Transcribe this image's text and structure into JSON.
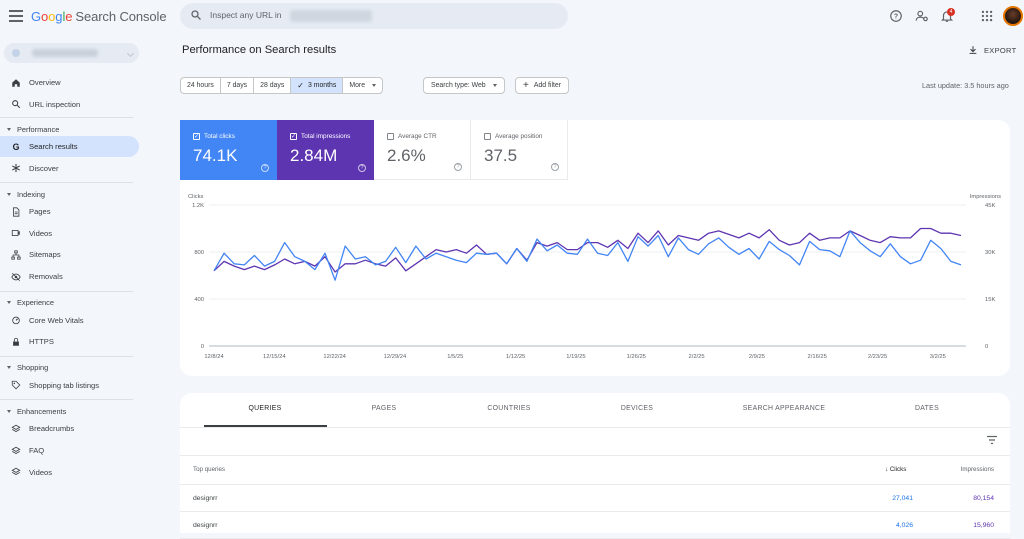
{
  "app": {
    "logo_letters": [
      {
        "ch": "G",
        "color": "#4285F4"
      },
      {
        "ch": "o",
        "color": "#EA4335"
      },
      {
        "ch": "o",
        "color": "#FBBC05"
      },
      {
        "ch": "g",
        "color": "#4285F4"
      },
      {
        "ch": "l",
        "color": "#34A853"
      },
      {
        "ch": "e",
        "color": "#EA4335"
      }
    ],
    "product": "Search Console",
    "search_placeholder": "Inspect any URL in",
    "notification_count": "4"
  },
  "sidebar": {
    "items": [
      {
        "label": "Overview",
        "icon": "home-icon"
      },
      {
        "label": "URL inspection",
        "icon": "search-icon"
      }
    ],
    "sections": [
      {
        "label": "Performance",
        "items": [
          {
            "label": "Search results",
            "icon": "google-g-icon",
            "active": true
          },
          {
            "label": "Discover",
            "icon": "asterisk-icon"
          }
        ]
      },
      {
        "label": "Indexing",
        "items": [
          {
            "label": "Pages",
            "icon": "pages-icon"
          },
          {
            "label": "Videos",
            "icon": "videos-icon"
          },
          {
            "label": "Sitemaps",
            "icon": "sitemaps-icon"
          },
          {
            "label": "Removals",
            "icon": "eye-off-icon"
          }
        ]
      },
      {
        "label": "Experience",
        "items": [
          {
            "label": "Core Web Vitals",
            "icon": "gauge-icon"
          },
          {
            "label": "HTTPS",
            "icon": "lock-icon"
          }
        ]
      },
      {
        "label": "Shopping",
        "items": [
          {
            "label": "Shopping tab listings",
            "icon": "tag-icon"
          }
        ]
      },
      {
        "label": "Enhancements",
        "items": [
          {
            "label": "Breadcrumbs",
            "icon": "layers-icon"
          },
          {
            "label": "FAQ",
            "icon": "layers-icon"
          },
          {
            "label": "Videos",
            "icon": "layers-icon"
          }
        ]
      }
    ]
  },
  "header": {
    "title": "Performance on Search results",
    "export_label": "EXPORT",
    "last_update": "Last update: 3.5 hours ago"
  },
  "filters": {
    "date_ranges": [
      {
        "label": "24 hours",
        "selected": false
      },
      {
        "label": "7 days",
        "selected": false
      },
      {
        "label": "28 days",
        "selected": false
      },
      {
        "label": "3 months",
        "selected": true
      },
      {
        "label": "More",
        "selected": false,
        "dropdown": true
      }
    ],
    "search_type": "Search type: Web",
    "add_filter": "Add filter"
  },
  "metrics": [
    {
      "label": "Total clicks",
      "value": "74.1K",
      "checked": true,
      "color": "#4285f4"
    },
    {
      "label": "Total impressions",
      "value": "2.84M",
      "checked": true,
      "color": "#5e35b1"
    },
    {
      "label": "Average CTR",
      "value": "2.6%",
      "checked": false
    },
    {
      "label": "Average position",
      "value": "37.5",
      "checked": false
    }
  ],
  "chart_data": {
    "type": "line",
    "left_axis_label": "Clicks",
    "right_axis_label": "Impressions",
    "left_ticks": [
      "1.2K",
      "800",
      "400",
      "0"
    ],
    "right_ticks": [
      "45K",
      "30K",
      "15K",
      "0"
    ],
    "ylim_left": [
      0,
      1200
    ],
    "ylim_right": [
      0,
      45000
    ],
    "x_ticks": [
      "12/8/24",
      "12/15/24",
      "12/22/24",
      "12/29/24",
      "1/5/25",
      "1/12/25",
      "1/19/25",
      "1/26/25",
      "2/2/25",
      "2/9/25",
      "2/16/25",
      "2/23/25",
      "3/2/25"
    ],
    "series": [
      {
        "name": "Clicks",
        "color": "#4285f4",
        "axis": "left",
        "values": [
          640,
          790,
          700,
          690,
          770,
          680,
          720,
          880,
          760,
          720,
          650,
          790,
          560,
          850,
          740,
          760,
          690,
          720,
          840,
          710,
          850,
          740,
          790,
          760,
          730,
          710,
          790,
          780,
          790,
          700,
          830,
          720,
          910,
          810,
          860,
          790,
          780,
          910,
          790,
          770,
          880,
          720,
          930,
          850,
          940,
          760,
          920,
          820,
          780,
          870,
          920,
          840,
          780,
          830,
          740,
          890,
          820,
          770,
          690,
          890,
          820,
          810,
          760,
          980,
          880,
          810,
          760,
          870,
          760,
          700,
          730,
          900,
          830,
          720,
          690
        ]
      },
      {
        "name": "Impressions",
        "color": "#5e35b1",
        "axis": "left",
        "values": [
          640,
          720,
          680,
          650,
          680,
          650,
          690,
          740,
          700,
          720,
          680,
          760,
          630,
          700,
          700,
          730,
          700,
          680,
          750,
          640,
          700,
          760,
          820,
          800,
          820,
          790,
          860,
          780,
          790,
          700,
          830,
          730,
          880,
          850,
          880,
          820,
          820,
          880,
          880,
          840,
          900,
          830,
          960,
          880,
          980,
          860,
          940,
          920,
          900,
          960,
          980,
          950,
          920,
          960,
          920,
          990,
          900,
          860,
          880,
          960,
          900,
          920,
          920,
          980,
          940,
          900,
          880,
          930,
          920,
          920,
          1000,
          1000,
          960,
          960,
          940
        ]
      }
    ]
  },
  "table": {
    "tabs": [
      {
        "label": "QUERIES",
        "active": true
      },
      {
        "label": "PAGES",
        "active": false
      },
      {
        "label": "COUNTRIES",
        "active": false
      },
      {
        "label": "DEVICES",
        "active": false
      },
      {
        "label": "SEARCH APPEARANCE",
        "active": false
      },
      {
        "label": "DATES",
        "active": false
      }
    ],
    "columns": {
      "query": "Top queries",
      "clicks": "Clicks",
      "impressions": "Impressions"
    },
    "rows": [
      {
        "query": "designrr",
        "clicks": "27,041",
        "impressions": "80,154"
      },
      {
        "query": "designrr",
        "clicks": "4,026",
        "impressions": "15,960"
      }
    ]
  }
}
